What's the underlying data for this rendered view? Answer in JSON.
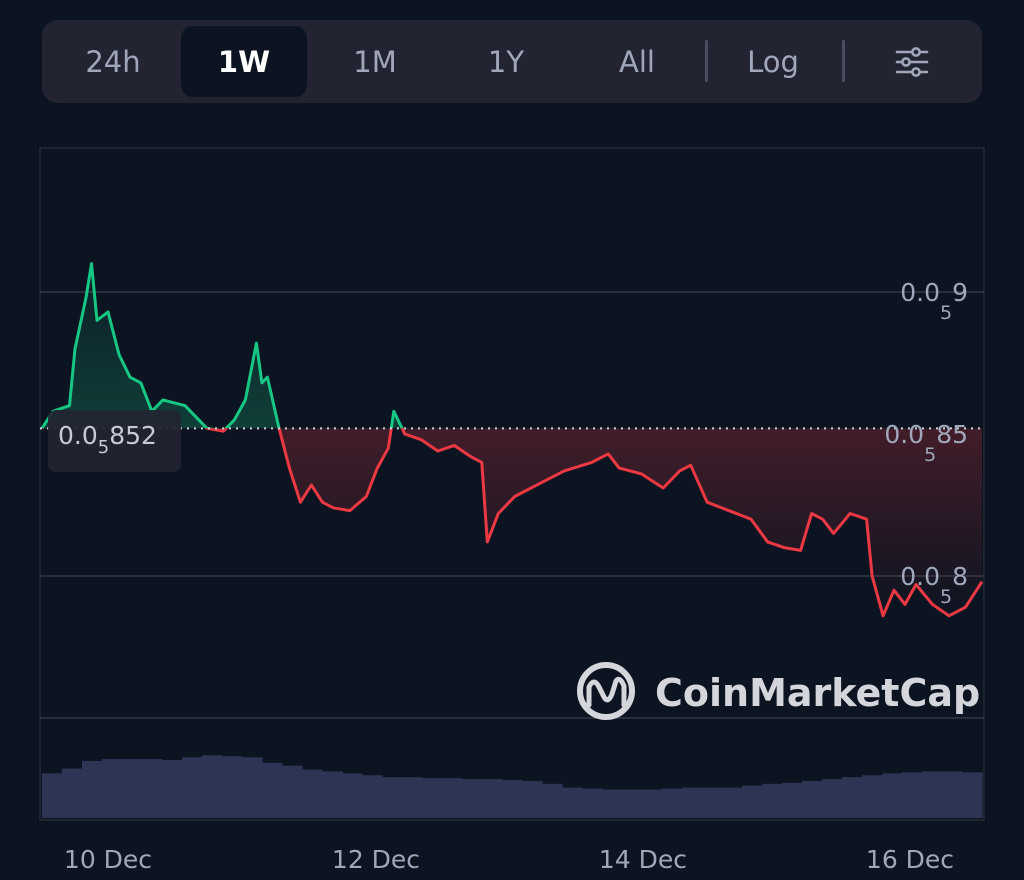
{
  "timeframe": {
    "tabs": [
      "24h",
      "1W",
      "1M",
      "1Y",
      "All"
    ],
    "active": "1W",
    "log_label": "Log",
    "settings_icon": "sliders-icon"
  },
  "price_tag": {
    "prefix": "0.0",
    "zeros": "5",
    "digits": "852"
  },
  "watermark": "CoinMarketCap",
  "colors": {
    "background": "#0d1421",
    "up": "#16c784",
    "down": "#ea3943",
    "volume": "#2c3553",
    "grid": "#323846",
    "text": "#a1a7bb"
  },
  "chart_data": {
    "type": "area",
    "baseline": 8.52e-06,
    "x_ticks": [
      "10 Dec",
      "12 Dec",
      "14 Dec",
      "16 Dec"
    ],
    "y_ticks": [
      {
        "value": 9e-06,
        "prefix": "0.0",
        "zeros": "5",
        "digits": "9"
      },
      {
        "value": 8.5e-06,
        "prefix": "0.0",
        "zeros": "5",
        "digits": "85"
      },
      {
        "value": 8e-06,
        "prefix": "0.0",
        "zeros": "5",
        "digits": "8"
      }
    ],
    "ylim": [
      7.5e-06,
      9.5e-06
    ],
    "x_range": [
      "2023-12-09T18:00",
      "2023-12-16T21:00"
    ],
    "series": [
      {
        "values": [
          [
            "2023-12-09T18:00",
            8.52e-06
          ],
          [
            "2023-12-09T20:00",
            8.58e-06
          ],
          [
            "2023-12-09T23:00",
            8.6e-06
          ],
          [
            "2023-12-10T00:00",
            8.8e-06
          ],
          [
            "2023-12-10T02:00",
            8.98e-06
          ],
          [
            "2023-12-10T03:00",
            9.1e-06
          ],
          [
            "2023-12-10T04:00",
            8.9e-06
          ],
          [
            "2023-12-10T06:00",
            8.93e-06
          ],
          [
            "2023-12-10T08:00",
            8.78e-06
          ],
          [
            "2023-12-10T10:00",
            8.7e-06
          ],
          [
            "2023-12-10T12:00",
            8.68e-06
          ],
          [
            "2023-12-10T14:00",
            8.58e-06
          ],
          [
            "2023-12-10T16:00",
            8.62e-06
          ],
          [
            "2023-12-10T18:00",
            8.61e-06
          ],
          [
            "2023-12-10T20:00",
            8.6e-06
          ],
          [
            "2023-12-11T00:00",
            8.52e-06
          ],
          [
            "2023-12-11T03:00",
            8.51e-06
          ],
          [
            "2023-12-11T05:00",
            8.55e-06
          ],
          [
            "2023-12-11T07:00",
            8.62e-06
          ],
          [
            "2023-12-11T09:00",
            8.82e-06
          ],
          [
            "2023-12-11T10:00",
            8.68e-06
          ],
          [
            "2023-12-11T11:00",
            8.7e-06
          ],
          [
            "2023-12-11T13:00",
            8.53e-06
          ],
          [
            "2023-12-11T15:00",
            8.38e-06
          ],
          [
            "2023-12-11T17:00",
            8.26e-06
          ],
          [
            "2023-12-11T19:00",
            8.32e-06
          ],
          [
            "2023-12-11T21:00",
            8.26e-06
          ],
          [
            "2023-12-11T23:00",
            8.24e-06
          ],
          [
            "2023-12-12T02:00",
            8.23e-06
          ],
          [
            "2023-12-12T05:00",
            8.28e-06
          ],
          [
            "2023-12-12T07:00",
            8.38e-06
          ],
          [
            "2023-12-12T09:00",
            8.45e-06
          ],
          [
            "2023-12-12T10:00",
            8.58e-06
          ],
          [
            "2023-12-12T12:00",
            8.5e-06
          ],
          [
            "2023-12-12T15:00",
            8.48e-06
          ],
          [
            "2023-12-12T18:00",
            8.44e-06
          ],
          [
            "2023-12-12T21:00",
            8.46e-06
          ],
          [
            "2023-12-13T00:00",
            8.42e-06
          ],
          [
            "2023-12-13T02:00",
            8.4e-06
          ],
          [
            "2023-12-13T03:00",
            8.12e-06
          ],
          [
            "2023-12-13T05:00",
            8.22e-06
          ],
          [
            "2023-12-13T08:00",
            8.28e-06
          ],
          [
            "2023-12-13T12:00",
            8.32e-06
          ],
          [
            "2023-12-13T17:00",
            8.37e-06
          ],
          [
            "2023-12-13T22:00",
            8.4e-06
          ],
          [
            "2023-12-14T01:00",
            8.43e-06
          ],
          [
            "2023-12-14T03:00",
            8.38e-06
          ],
          [
            "2023-12-14T07:00",
            8.36e-06
          ],
          [
            "2023-12-14T11:00",
            8.31e-06
          ],
          [
            "2023-12-14T14:00",
            8.37e-06
          ],
          [
            "2023-12-14T16:00",
            8.39e-06
          ],
          [
            "2023-12-14T19:00",
            8.26e-06
          ],
          [
            "2023-12-14T23:00",
            8.23e-06
          ],
          [
            "2023-12-15T03:00",
            8.2e-06
          ],
          [
            "2023-12-15T06:00",
            8.12e-06
          ],
          [
            "2023-12-15T09:00",
            8.1e-06
          ],
          [
            "2023-12-15T12:00",
            8.09e-06
          ],
          [
            "2023-12-15T14:00",
            8.22e-06
          ],
          [
            "2023-12-15T16:00",
            8.2e-06
          ],
          [
            "2023-12-15T18:00",
            8.15e-06
          ],
          [
            "2023-12-15T21:00",
            8.22e-06
          ],
          [
            "2023-12-16T00:00",
            8.2e-06
          ],
          [
            "2023-12-16T01:00",
            8e-06
          ],
          [
            "2023-12-16T03:00",
            7.86e-06
          ],
          [
            "2023-12-16T05:00",
            7.95e-06
          ],
          [
            "2023-12-16T07:00",
            7.9e-06
          ],
          [
            "2023-12-16T09:00",
            7.97e-06
          ],
          [
            "2023-12-16T12:00",
            7.9e-06
          ],
          [
            "2023-12-16T15:00",
            7.86e-06
          ],
          [
            "2023-12-16T18:00",
            7.89e-06
          ],
          [
            "2023-12-16T21:00",
            7.98e-06
          ]
        ]
      }
    ],
    "volume_level": [
      0.47,
      0.52,
      0.6,
      0.62,
      0.62,
      0.62,
      0.61,
      0.64,
      0.66,
      0.65,
      0.64,
      0.58,
      0.55,
      0.51,
      0.49,
      0.47,
      0.45,
      0.43,
      0.43,
      0.42,
      0.42,
      0.41,
      0.41,
      0.4,
      0.39,
      0.36,
      0.32,
      0.31,
      0.3,
      0.3,
      0.3,
      0.31,
      0.32,
      0.32,
      0.32,
      0.34,
      0.36,
      0.37,
      0.39,
      0.41,
      0.43,
      0.45,
      0.47,
      0.48,
      0.49,
      0.49,
      0.48
    ],
    "grid": true
  }
}
